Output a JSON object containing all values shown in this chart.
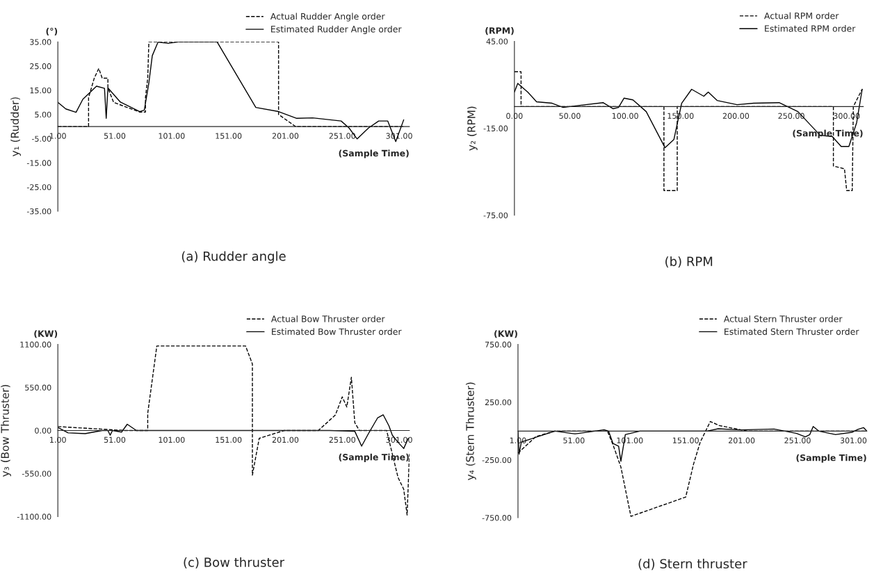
{
  "chart_data": [
    {
      "type": "line",
      "title": "(a) Rudder angle",
      "xlabel": "(Sample Time)",
      "ylabel": "y₁ (Rudder)",
      "annotations": [
        "(°)"
      ],
      "legend": "top right",
      "xlim": [
        1,
        310
      ],
      "xticks": [
        {
          "value": 1,
          "label": "1.00"
        },
        {
          "value": 51,
          "label": "51.00"
        },
        {
          "value": 101,
          "label": "101.00"
        },
        {
          "value": 151,
          "label": "151.00"
        },
        {
          "value": 201,
          "label": "201.00"
        },
        {
          "value": 251,
          "label": "251.00"
        },
        {
          "value": 301,
          "label": "301.00"
        }
      ],
      "ylim": [
        -35,
        35
      ],
      "yticks": [
        {
          "value": 35,
          "label": "35.00"
        },
        {
          "value": 25,
          "label": "25.00"
        },
        {
          "value": 15,
          "label": "15.00"
        },
        {
          "value": 5,
          "label": "5.00"
        },
        {
          "value": -5,
          "label": "-5.00"
        },
        {
          "value": -15,
          "label": "-15.00"
        },
        {
          "value": -25,
          "label": "-25.00"
        },
        {
          "value": -35,
          "label": "-35.00"
        }
      ],
      "series": [
        {
          "name": "Actual Rudder Angle order",
          "color": "#000000",
          "line_style": "dashed",
          "x": [
            1,
            28,
            28,
            33,
            37,
            40,
            45,
            45,
            50,
            73,
            78,
            78,
            80,
            81,
            195,
            195,
            210,
            250,
            258,
            305
          ],
          "values": [
            0,
            0,
            12,
            20,
            24,
            20,
            20,
            16,
            10,
            6,
            6,
            12,
            20,
            35,
            35,
            5,
            0,
            0,
            0,
            0
          ]
        },
        {
          "name": "Estimated Rudder Angle order",
          "color": "#000000",
          "line_style": "solid",
          "x": [
            1,
            8,
            17,
            23,
            35,
            42,
            43.5,
            45,
            56,
            73,
            77,
            81,
            84,
            89,
            98,
            107,
            141,
            153,
            175,
            195,
            211,
            225,
            250,
            257,
            264,
            274,
            283,
            291,
            298,
            305
          ],
          "values": [
            10,
            7.3,
            5.9,
            11.3,
            16.7,
            15.8,
            3.4,
            16,
            10.1,
            6.2,
            6.8,
            18,
            29.3,
            34.9,
            34.4,
            35,
            35,
            25.4,
            7.9,
            6.2,
            3.4,
            3.6,
            2.3,
            -0.6,
            -5.1,
            -0.6,
            2.3,
            2.3,
            -6.2,
            2.8
          ]
        }
      ]
    },
    {
      "type": "line",
      "title": "(b) RPM",
      "xlabel": "(Sample Time)",
      "ylabel": "y₂ (RPM)",
      "annotations": [
        "(RPM)"
      ],
      "legend": "top right",
      "xlim": [
        0,
        315
      ],
      "xticks": [
        {
          "value": 0,
          "label": "0.00"
        },
        {
          "value": 50,
          "label": "50.00"
        },
        {
          "value": 100,
          "label": "100.00"
        },
        {
          "value": 150,
          "label": "150.00"
        },
        {
          "value": 200,
          "label": "200.00"
        },
        {
          "value": 250,
          "label": "250.00"
        },
        {
          "value": 300,
          "label": "300.00"
        }
      ],
      "ylim": [
        -75,
        45
      ],
      "yticks": [
        {
          "value": 45,
          "label": "45.00"
        },
        {
          "value": -15,
          "label": "-15.00"
        },
        {
          "value": -75,
          "label": "-75.00"
        }
      ],
      "series": [
        {
          "name": "Actual RPM order",
          "color": "#000000",
          "line_style": "dashed",
          "x": [
            0,
            6,
            6,
            135,
            135,
            147,
            147,
            288,
            288,
            298,
            300,
            305,
            306,
            314
          ],
          "values": [
            24,
            24,
            0,
            0,
            -58,
            -58,
            0,
            0,
            -41,
            -43,
            -58,
            -58,
            0,
            12
          ]
        },
        {
          "name": "Estimated RPM order",
          "color": "#000000",
          "line_style": "solid",
          "x": [
            0,
            3,
            12,
            20,
            34,
            44,
            59,
            80,
            89,
            94,
            99,
            107,
            119,
            136,
            144,
            151,
            160,
            171,
            175,
            183,
            201,
            216,
            239,
            256,
            276,
            287,
            295,
            302,
            309,
            314
          ],
          "values": [
            10,
            16,
            10,
            3.3,
            2.3,
            -0.6,
            0.8,
            2.7,
            -1.5,
            -0.6,
            5.8,
            4.6,
            -3.5,
            -28.4,
            -22.7,
            2.3,
            11.9,
            7.1,
            10,
            4.2,
            1.3,
            2.3,
            2.7,
            -3.5,
            -19.8,
            -20.7,
            -27.5,
            -27.5,
            -11.1,
            11.9
          ]
        }
      ]
    },
    {
      "type": "line",
      "title": "(c) Bow thruster",
      "xlabel": "(Sample Time)",
      "ylabel": "y₃ (Bow Thruster)",
      "annotations": [
        "(KW)"
      ],
      "legend": "top right",
      "xlim": [
        1,
        310
      ],
      "xticks": [
        {
          "value": 1,
          "label": "1.00"
        },
        {
          "value": 51,
          "label": "51.00"
        },
        {
          "value": 101,
          "label": "101.00"
        },
        {
          "value": 151,
          "label": "151.00"
        },
        {
          "value": 201,
          "label": "201.00"
        },
        {
          "value": 251,
          "label": "251.00"
        },
        {
          "value": 301,
          "label": "301.00"
        }
      ],
      "ylim": [
        -1100,
        1100
      ],
      "yticks": [
        {
          "value": 1100,
          "label": "1100.00"
        },
        {
          "value": 550,
          "label": "550.00"
        },
        {
          "value": 0,
          "label": "0.00"
        },
        {
          "value": -550,
          "label": "-550.00"
        },
        {
          "value": -1100,
          "label": "-1100.00"
        }
      ],
      "series": [
        {
          "name": "Actual Bow Thruster order",
          "color": "#000000",
          "line_style": "dashed",
          "x": [
            1,
            60,
            80,
            80,
            88,
            166,
            172,
            172,
            178,
            200,
            230,
            245,
            251,
            255,
            259,
            262,
            266,
            290,
            295,
            300,
            305,
            308,
            310
          ],
          "values": [
            50,
            0,
            0,
            220,
            1080,
            1080,
            850,
            -570,
            -100,
            0,
            0,
            200,
            430,
            300,
            680,
            100,
            0,
            0,
            -300,
            -600,
            -750,
            -1080,
            -300
          ]
        },
        {
          "name": "Estimated Bow Thruster order",
          "color": "#000000",
          "line_style": "solid",
          "x": [
            1,
            10,
            25,
            40,
            45,
            47,
            49,
            57,
            62,
            70,
            180,
            240,
            262,
            268,
            274,
            282,
            287,
            292,
            295,
            300,
            305,
            309
          ],
          "values": [
            40,
            -30,
            -40,
            0,
            0,
            -60,
            0,
            -20,
            80,
            0,
            0,
            0,
            -10,
            -200,
            -40,
            160,
            200,
            60,
            -60,
            -150,
            -230,
            -100
          ]
        }
      ]
    },
    {
      "type": "line",
      "title": "(d) Stern thruster",
      "xlabel": "(Sample Time)",
      "ylabel": "y₄ (Stern Thruster)",
      "annotations": [
        "(KW)"
      ],
      "legend": "top right",
      "xlim": [
        1,
        313
      ],
      "xticks": [
        {
          "value": 1,
          "label": "1.00"
        },
        {
          "value": 51,
          "label": "51.00"
        },
        {
          "value": 101,
          "label": "101.00"
        },
        {
          "value": 151,
          "label": "151.00"
        },
        {
          "value": 201,
          "label": "201.00"
        },
        {
          "value": 251,
          "label": "251.00"
        },
        {
          "value": 301,
          "label": "301.00"
        }
      ],
      "ylim": [
        -750,
        750
      ],
      "yticks": [
        {
          "value": 750,
          "label": "750.00"
        },
        {
          "value": 250,
          "label": "250.00"
        },
        {
          "value": -250,
          "label": "-250.00"
        },
        {
          "value": -750,
          "label": "-750.00"
        }
      ],
      "series": [
        {
          "name": "Actual Stern Thruster order",
          "color": "#000000",
          "line_style": "dashed",
          "x": [
            1,
            17,
            34,
            81,
            86,
            93,
            102,
            151,
            158,
            164,
            173,
            181,
            206,
            255,
            313
          ],
          "values": [
            -190,
            -48,
            0,
            0,
            -119,
            -310,
            -738,
            -571,
            -286,
            -95,
            83,
            48,
            0,
            0,
            0
          ]
        },
        {
          "name": "Estimated Stern Thruster order",
          "color": "#000000",
          "line_style": "solid",
          "x": [
            1,
            2,
            4,
            34,
            52,
            70,
            78,
            82,
            86,
            91,
            93,
            97,
            110,
            170,
            180,
            200,
            230,
            250,
            258,
            262,
            265,
            270,
            285,
            300,
            305,
            310,
            313
          ],
          "values": [
            0,
            -200,
            -95,
            0,
            -24,
            0,
            12,
            0,
            -107,
            -131,
            -262,
            -30,
            0,
            0,
            20,
            10,
            18,
            -20,
            -50,
            -30,
            40,
            0,
            -30,
            -10,
            15,
            30,
            0
          ]
        }
      ]
    }
  ]
}
